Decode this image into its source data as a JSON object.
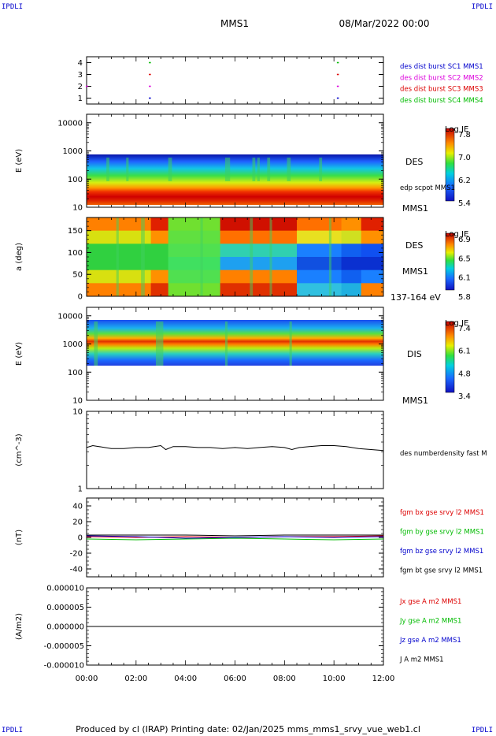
{
  "corner_labels": {
    "top_left": "IPDLI",
    "top_right": "IPDLI",
    "bottom_left": "IPDLI",
    "bottom_right": "IPDLI"
  },
  "header": {
    "spacecraft": "MMS1",
    "datetime": "08/Mar/2022 00:00"
  },
  "footer": {
    "text": "Produced by cl (IRAP)   Printing date: 02/Jan/2025   mms_mms1_srvy_vue_web1.cl"
  },
  "colors": {
    "blue": "#0000cc",
    "magenta": "#dd00dd",
    "red": "#dd0000",
    "green": "#00bb00",
    "black": "#000000"
  },
  "chart_data": [
    {
      "type": "scatter",
      "name_tag": "burst-availability",
      "ylim": [
        0.5,
        4.5
      ],
      "y_ticks": [
        "4",
        "3",
        "2",
        "1"
      ],
      "x_ticks": [
        "00:00",
        "02:00",
        "04:00",
        "06:00",
        "08:00",
        "10:00",
        "12:00"
      ],
      "xlim_hours": [
        0,
        12
      ],
      "series": [
        {
          "name": "des dist burst SC1 MMS1",
          "color": "#0000cc",
          "y": 1,
          "x_hours": [
            2.55,
            10.15
          ]
        },
        {
          "name": "des dist burst SC2 MMS2",
          "color": "#dd00dd",
          "y": 2,
          "x_hours": [
            0.0,
            2.55,
            10.15
          ]
        },
        {
          "name": "des dist burst SC3 MMS3",
          "color": "#dd0000",
          "y": 3,
          "x_hours": [
            2.55,
            10.15
          ]
        },
        {
          "name": "des dist burst SC4 MMS4",
          "color": "#00bb00",
          "y": 4,
          "x_hours": [
            2.55,
            10.15
          ]
        }
      ]
    },
    {
      "type": "heatmap",
      "name_tag": "des-energy-spectrogram",
      "ylabel": "E (eV)",
      "y_ticks": [
        "10000",
        "1000",
        "100",
        "10"
      ],
      "yscale": "log",
      "ylim": [
        10,
        20000
      ],
      "colorbar": {
        "title": "Log JE",
        "ticks": [
          "7.8",
          "7.0",
          "6.2",
          "5.4"
        ]
      },
      "side_labels": [
        "DES",
        "edp scpot MMS1",
        "MMS1"
      ]
    },
    {
      "type": "heatmap",
      "name_tag": "des-pitch-angle",
      "ylabel": "a (deg)",
      "y_ticks": [
        "150",
        "100",
        "50",
        "0"
      ],
      "ylim": [
        0,
        180
      ],
      "colorbar": {
        "title": "Log JE",
        "ticks": [
          "6.9",
          "6.5",
          "6.1",
          "5.8"
        ]
      },
      "side_labels": [
        "DES",
        "MMS1",
        "137-164 eV"
      ]
    },
    {
      "type": "heatmap",
      "name_tag": "dis-energy-spectrogram",
      "ylabel": "E (eV)",
      "y_ticks": [
        "10000",
        "1000",
        "100",
        "10"
      ],
      "yscale": "log",
      "ylim": [
        10,
        20000
      ],
      "colorbar": {
        "title": "Log JE",
        "ticks": [
          "7.4",
          "6.1",
          "4.8",
          "3.4"
        ]
      },
      "side_labels": [
        "DIS",
        "MMS1"
      ]
    },
    {
      "type": "line",
      "name_tag": "density",
      "ylabel": "(cm^-3)",
      "y_ticks": [
        "10",
        "1"
      ],
      "yscale": "log",
      "ylim": [
        1,
        10
      ],
      "series": [
        {
          "name": "des numberdensity fast M",
          "color": "#000000",
          "x_hours": [
            0,
            0.25,
            0.5,
            1,
            1.5,
            2,
            2.5,
            3,
            3.2,
            3.5,
            4,
            4.5,
            5,
            5.5,
            6,
            6.5,
            7,
            7.5,
            8,
            8.3,
            8.6,
            9,
            9.5,
            10,
            10.5,
            11,
            11.5,
            12
          ],
          "y": [
            3.4,
            3.6,
            3.5,
            3.3,
            3.3,
            3.4,
            3.4,
            3.6,
            3.2,
            3.5,
            3.5,
            3.4,
            3.4,
            3.3,
            3.4,
            3.3,
            3.4,
            3.5,
            3.4,
            3.2,
            3.4,
            3.5,
            3.6,
            3.6,
            3.5,
            3.3,
            3.2,
            3.1
          ]
        }
      ]
    },
    {
      "type": "line",
      "name_tag": "magnetic-field",
      "ylabel": "(nT)",
      "y_ticks": [
        "40",
        "20",
        "0",
        "-20",
        "-40"
      ],
      "ylim": [
        -50,
        50
      ],
      "series": [
        {
          "name": "fgm bx gse srvy l2 MMS1",
          "color": "#dd0000",
          "x_hours": [
            0,
            2,
            4,
            6,
            8,
            10,
            12
          ],
          "y": [
            1,
            0,
            1,
            0,
            1,
            1,
            2
          ]
        },
        {
          "name": "fgm by gse srvy l2 MMS1",
          "color": "#00bb00",
          "x_hours": [
            0,
            2,
            4,
            6,
            8,
            10,
            12
          ],
          "y": [
            -2,
            -3,
            -2,
            -1,
            -2,
            -3,
            -2
          ]
        },
        {
          "name": "fgm bz gse srvy l2 MMS1",
          "color": "#0000cc",
          "x_hours": [
            0,
            2,
            4,
            6,
            8,
            10,
            12
          ],
          "y": [
            2,
            1,
            -1,
            0,
            1,
            0,
            1
          ]
        },
        {
          "name": "fgm bt gse srvy l2 MMS1",
          "color": "#000000",
          "x_hours": [
            0,
            2,
            4,
            6,
            8,
            10,
            12
          ],
          "y": [
            3,
            3,
            3,
            2,
            3,
            3,
            3
          ]
        }
      ]
    },
    {
      "type": "line",
      "name_tag": "current-density",
      "ylabel": "(A/m2)",
      "y_ticks": [
        "0.000010",
        "0.000005",
        "0.000000",
        "-0.000005",
        "-0.000010"
      ],
      "ylim": [
        -1e-05,
        1e-05
      ],
      "series": [
        {
          "name": "Jx gse A m2 MMS1",
          "color": "#dd0000",
          "x_hours": [
            0,
            12
          ],
          "y": [
            0,
            0
          ]
        },
        {
          "name": "Jy gse A m2 MMS1",
          "color": "#00bb00",
          "x_hours": [
            0,
            12
          ],
          "y": [
            0,
            0
          ]
        },
        {
          "name": "Jz gse A m2 MMS1",
          "color": "#0000cc",
          "x_hours": [
            0,
            12
          ],
          "y": [
            0,
            0
          ]
        },
        {
          "name": "J A m2 MMS1",
          "color": "#000000",
          "x_hours": [
            0,
            12
          ],
          "y": [
            0,
            0
          ]
        }
      ]
    }
  ]
}
